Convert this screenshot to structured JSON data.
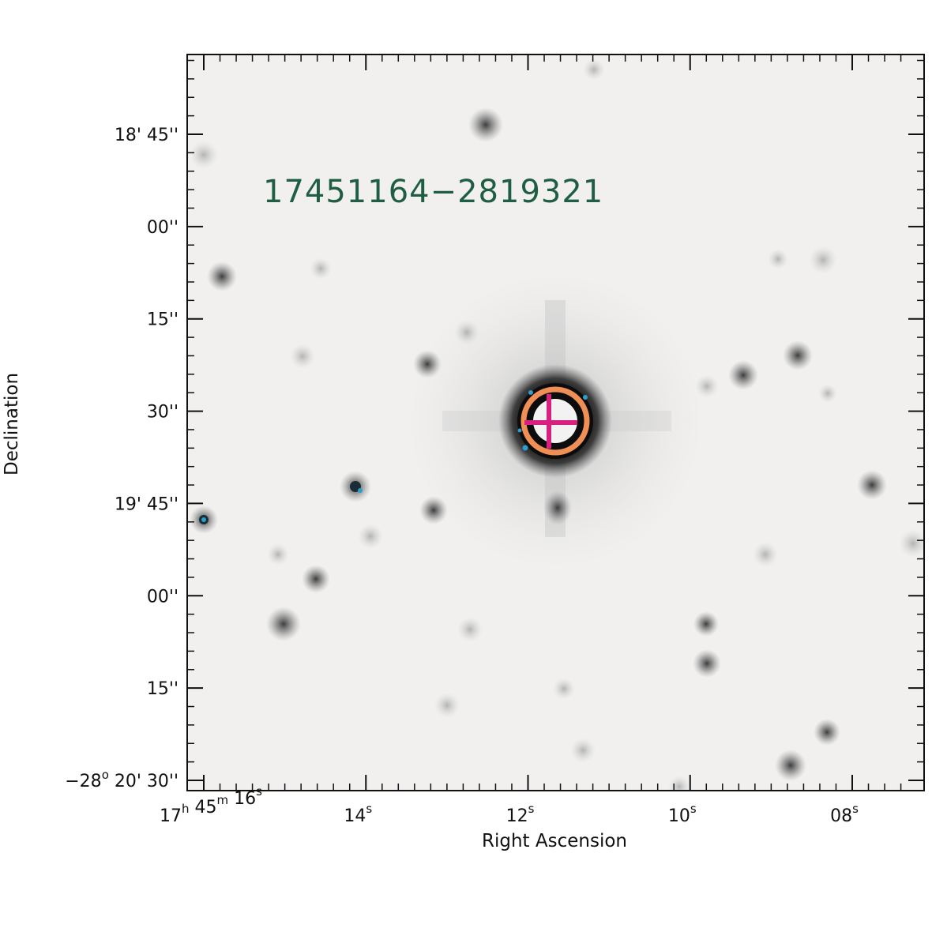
{
  "chart_data": {
    "type": "image",
    "source_label": "17451164−2819321",
    "xlabel": "Right Ascension",
    "ylabel": "Declination",
    "dec_ticks": [
      {
        "main": "18' 45''",
        "arcsec_offset": 0
      },
      {
        "main": "00''",
        "arcsec_offset": 15
      },
      {
        "main": "15''",
        "arcsec_offset": 30
      },
      {
        "main": "30''",
        "arcsec_offset": 45
      },
      {
        "main": "19' 45''",
        "arcsec_offset": 60
      },
      {
        "main": "00''",
        "arcsec_offset": 75
      },
      {
        "main": "15''",
        "arcsec_offset": 90
      },
      {
        "prefix": "−28",
        "deg_sup": "o",
        "main": " 20' 30''",
        "arcsec_offset": 105
      }
    ],
    "ra_ticks": [
      {
        "parts": [
          [
            "17",
            "h"
          ],
          [
            " 45",
            "m"
          ],
          [
            " 16",
            "s"
          ]
        ],
        "seconds": 16
      },
      {
        "parts": [
          [
            "14",
            "s"
          ]
        ],
        "seconds": 14
      },
      {
        "parts": [
          [
            "12",
            "s"
          ]
        ],
        "seconds": 12
      },
      {
        "parts": [
          [
            "10",
            "s"
          ]
        ],
        "seconds": 10
      },
      {
        "parts": [
          [
            "08",
            "s"
          ]
        ],
        "seconds": 8
      }
    ],
    "markers": {
      "circle_color": "#f08f55",
      "cross_color": "#d8207f"
    },
    "background_color": "#f1f0ef"
  }
}
